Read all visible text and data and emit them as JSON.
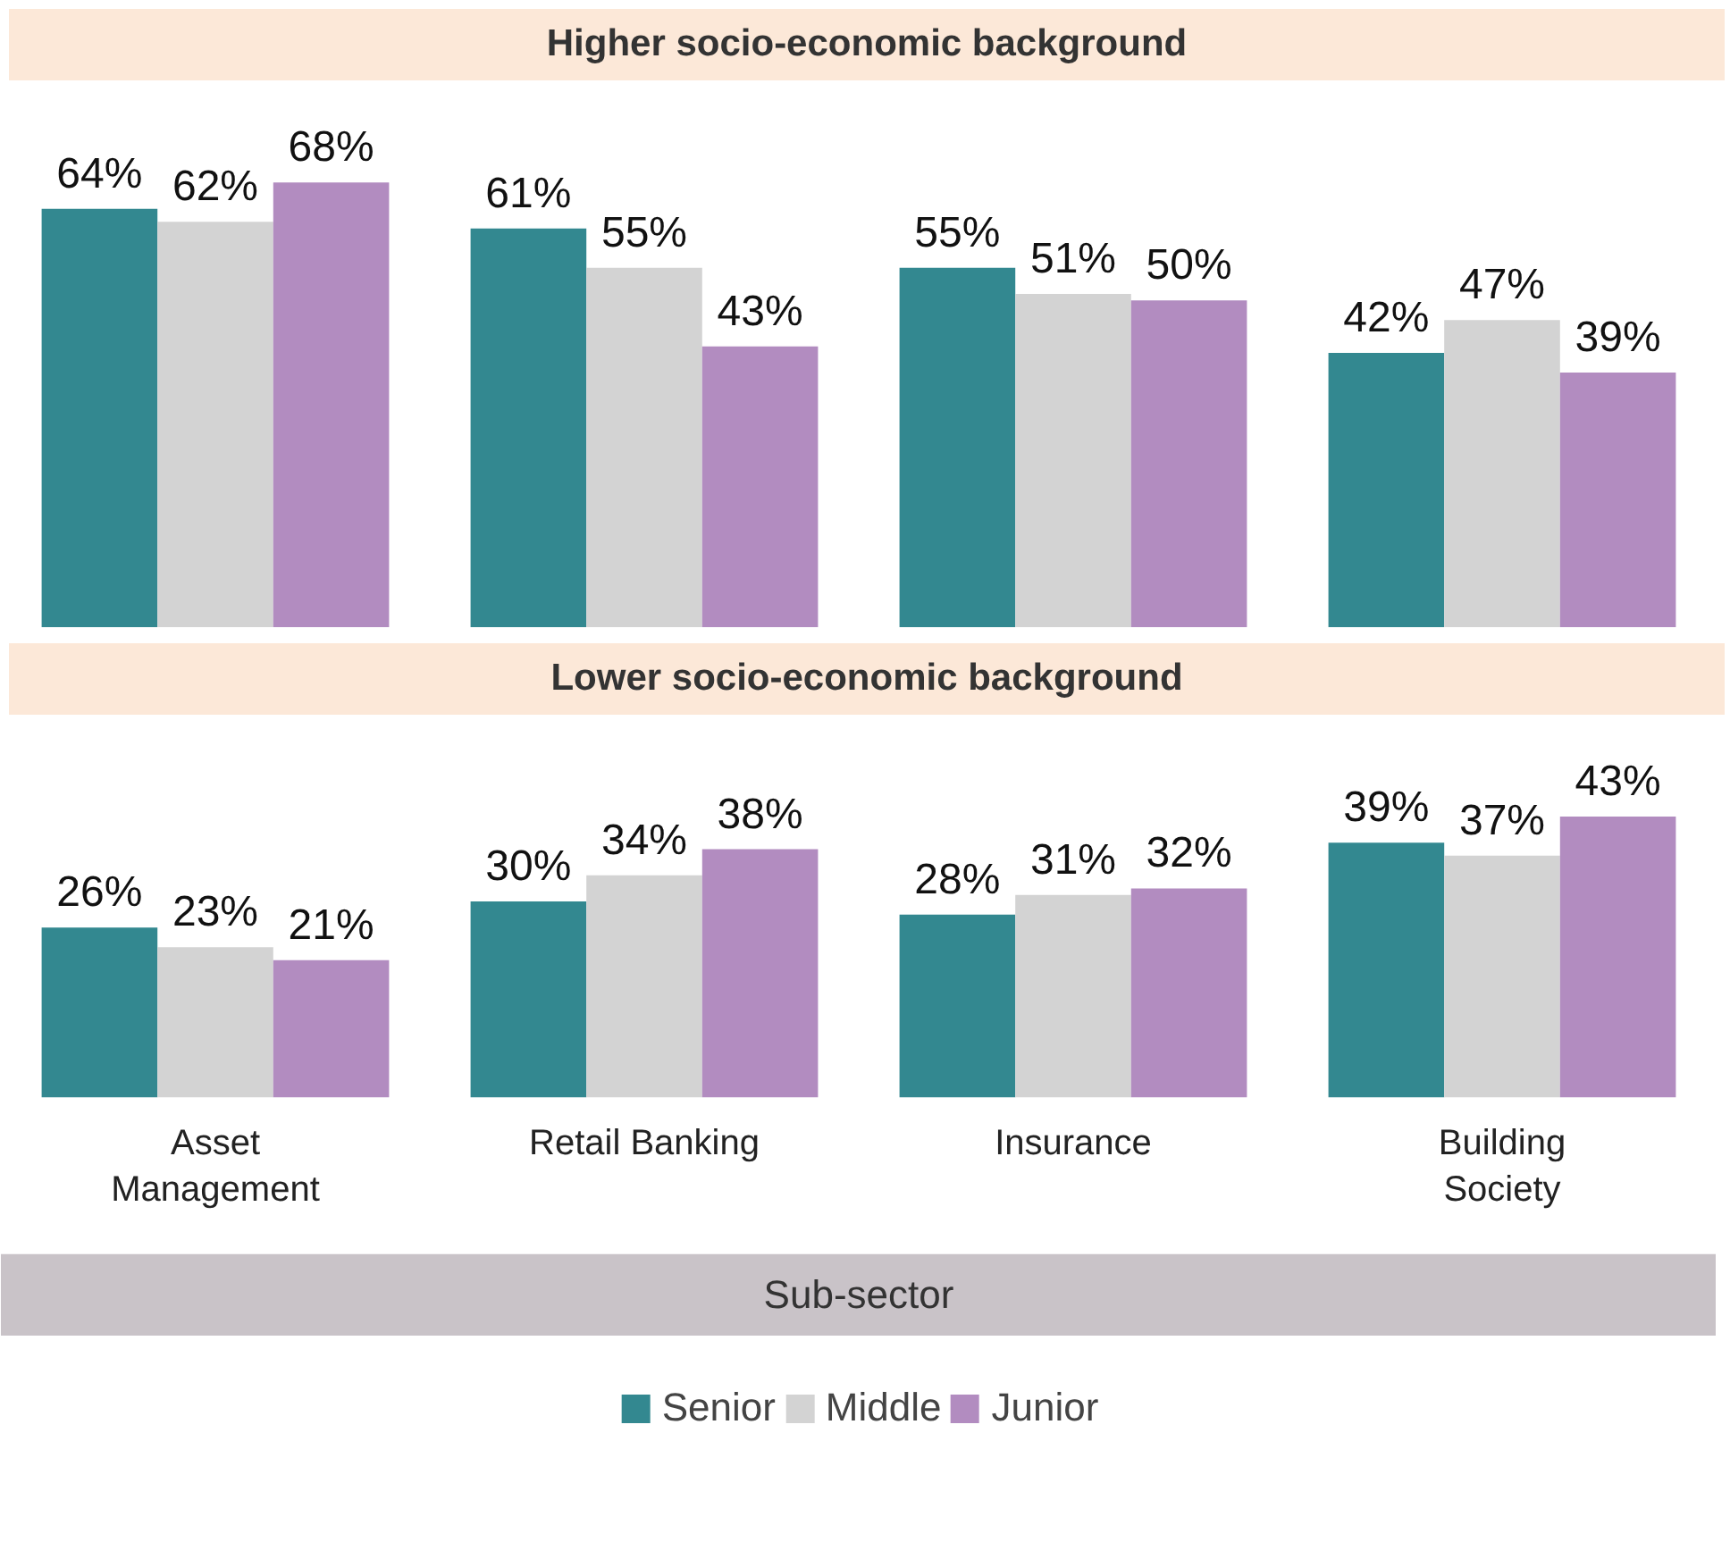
{
  "chart_data": [
    {
      "type": "bar",
      "title": "Higher socio-economic background",
      "categories": [
        null,
        null,
        null,
        null
      ],
      "tick_labels": false,
      "series": [
        {
          "color": "#338890",
          "values": [
            64,
            61,
            55,
            42
          ],
          "value_labels": [
            "64%",
            "61%",
            "55%",
            "42%"
          ]
        },
        {
          "color": "#d3d3d3",
          "values": [
            62,
            55,
            51,
            47
          ],
          "value_labels": [
            "62%",
            "55%",
            "51%",
            "47%"
          ]
        },
        {
          "color": "#b28cc0",
          "values": [
            68,
            43,
            50,
            39
          ],
          "value_labels": [
            "68%",
            "43%",
            "50%",
            "39%"
          ]
        }
      ]
    },
    {
      "type": "bar",
      "title": "Lower socio-economic background",
      "xlabel": "Sub-sector",
      "categories": [
        "Asset Management",
        "Retail Banking",
        "Insurance",
        "Building Society"
      ],
      "tick_labels": "x",
      "legend": "bottom",
      "series": [
        {
          "name": "Senior",
          "color": "#338890",
          "values": [
            26,
            30,
            28,
            39
          ],
          "value_labels": [
            "26%",
            "30%",
            "28%",
            "39%"
          ]
        },
        {
          "name": "Middle",
          "color": "#d3d3d3",
          "values": [
            23,
            34,
            31,
            37
          ],
          "value_labels": [
            "23%",
            "34%",
            "31%",
            "37%"
          ]
        },
        {
          "name": "Junior",
          "color": "#b28cc0",
          "values": [
            21,
            38,
            32,
            43
          ],
          "value_labels": [
            "21%",
            "38%",
            "32%",
            "43%"
          ]
        }
      ]
    }
  ]
}
